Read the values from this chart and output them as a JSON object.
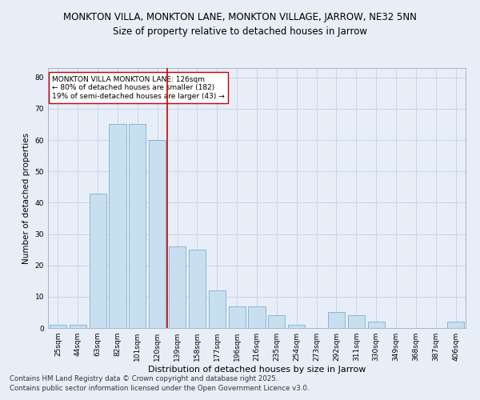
{
  "title": "MONKTON VILLA, MONKTON LANE, MONKTON VILLAGE, JARROW, NE32 5NN",
  "subtitle": "Size of property relative to detached houses in Jarrow",
  "xlabel": "Distribution of detached houses by size in Jarrow",
  "ylabel": "Number of detached properties",
  "categories": [
    "25sqm",
    "44sqm",
    "63sqm",
    "82sqm",
    "101sqm",
    "120sqm",
    "139sqm",
    "158sqm",
    "177sqm",
    "196sqm",
    "216sqm",
    "235sqm",
    "254sqm",
    "273sqm",
    "292sqm",
    "311sqm",
    "330sqm",
    "349sqm",
    "368sqm",
    "387sqm",
    "406sqm"
  ],
  "values": [
    1,
    1,
    43,
    65,
    65,
    60,
    26,
    25,
    12,
    7,
    7,
    4,
    1,
    0,
    5,
    4,
    2,
    0,
    0,
    0,
    2
  ],
  "bar_color": "#c8dff0",
  "bar_edgecolor": "#7aaed4",
  "bar_linewidth": 0.6,
  "vline_color": "#cc0000",
  "vline_linewidth": 1.2,
  "vline_x": 5.5,
  "annotation_text": "MONKTON VILLA MONKTON LANE: 126sqm\n← 80% of detached houses are smaller (182)\n19% of semi-detached houses are larger (43) →",
  "annotation_box_edgecolor": "#cc0000",
  "annotation_box_facecolor": "white",
  "annotation_fontsize": 6.5,
  "grid_color": "#c8d4e8",
  "background_color": "#e8eef8",
  "ylim": [
    0,
    83
  ],
  "yticks": [
    0,
    10,
    20,
    30,
    40,
    50,
    60,
    70,
    80
  ],
  "footer1": "Contains HM Land Registry data © Crown copyright and database right 2025.",
  "footer2": "Contains public sector information licensed under the Open Government Licence v3.0.",
  "title_fontsize": 8.5,
  "subtitle_fontsize": 8.5,
  "ylabel_fontsize": 7.5,
  "xlabel_fontsize": 8,
  "tick_fontsize": 6.5,
  "footer_fontsize": 6.2
}
